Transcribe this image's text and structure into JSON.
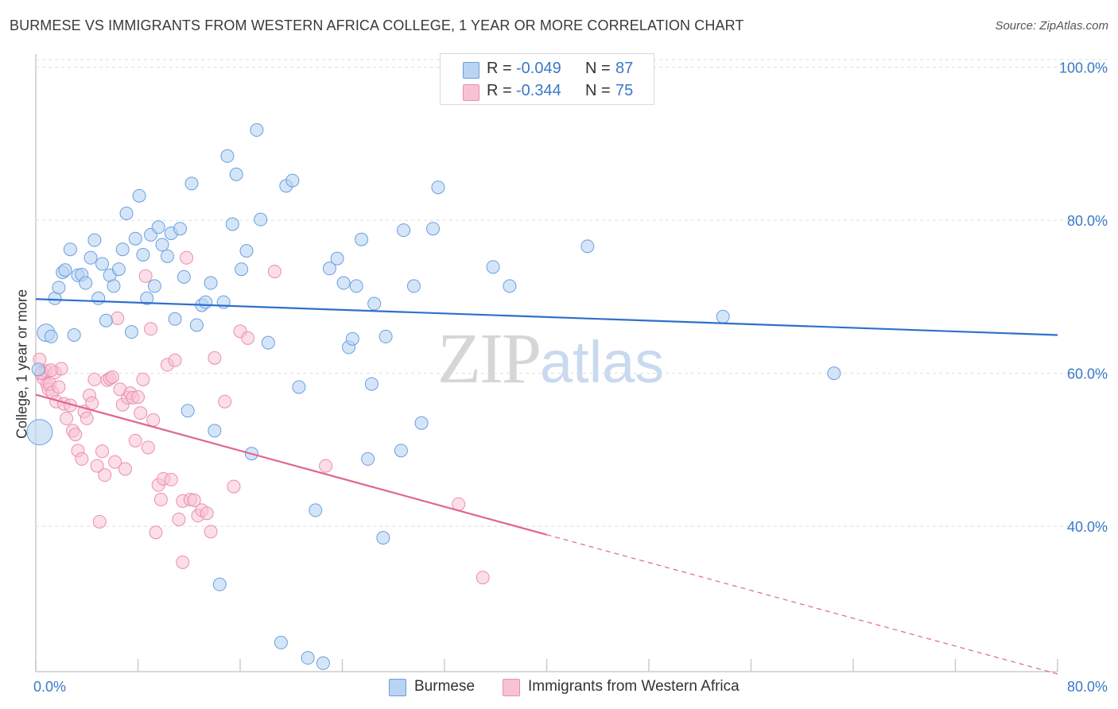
{
  "title": "BURMESE VS IMMIGRANTS FROM WESTERN AFRICA COLLEGE, 1 YEAR OR MORE CORRELATION CHART",
  "source": "Source: ZipAtlas.com",
  "watermark": {
    "zip": "ZIP",
    "atlas": "atlas"
  },
  "legend_top": {
    "rows": [
      {
        "r_label": "R =",
        "r_value": "-0.049",
        "n_label": "N =",
        "n_value": "87"
      },
      {
        "r_label": "R =",
        "r_value": "-0.344",
        "n_label": "N =",
        "n_value": "75"
      }
    ]
  },
  "legend_bottom": [
    "Burmese",
    "Immigrants from Western Africa"
  ],
  "colors": {
    "burmese_fill": "#b9d3f3",
    "burmese_stroke": "#6a9ee0",
    "burmese_line": "#2f6fcc",
    "wafrica_fill": "#f7c3d4",
    "wafrica_stroke": "#ec8eab",
    "wafrica_line": "#e0668f",
    "axis_text": "#3a78c9",
    "grid": "#dddddd"
  },
  "chart_data": {
    "type": "scatter",
    "title": "BURMESE VS IMMIGRANTS FROM WESTERN AFRICA COLLEGE, 1 YEAR OR MORE CORRELATION CHART",
    "xlabel": "",
    "ylabel": "College, 1 year or more",
    "x_tick_labels": [
      "0.0%",
      "80.0%"
    ],
    "y_tick_labels": [
      "100.0%",
      "80.0%",
      "60.0%",
      "40.0%"
    ],
    "xlim": [
      0,
      80
    ],
    "ylim": [
      21,
      101
    ],
    "y_ticks": [
      100,
      80,
      60,
      40
    ],
    "x_minor_ticks": [
      0,
      8,
      16,
      24,
      32,
      40,
      48,
      56,
      64,
      72,
      80
    ],
    "grid": true,
    "series": [
      {
        "name": "Burmese",
        "R": -0.049,
        "N": 87,
        "trend": {
          "x": [
            0,
            80
          ],
          "y": [
            69.7,
            65.0
          ]
        },
        "points": [
          [
            0.3,
            52.3
          ],
          [
            0.8,
            65.3
          ],
          [
            1.2,
            64.8
          ],
          [
            1.5,
            69.8
          ],
          [
            1.8,
            71.2
          ],
          [
            2.1,
            73.2
          ],
          [
            2.3,
            73.5
          ],
          [
            2.7,
            76.2
          ],
          [
            3.0,
            65.0
          ],
          [
            3.3,
            72.8
          ],
          [
            3.6,
            72.9
          ],
          [
            3.9,
            71.8
          ],
          [
            4.3,
            75.1
          ],
          [
            4.6,
            77.4
          ],
          [
            4.9,
            69.8
          ],
          [
            5.2,
            74.3
          ],
          [
            5.5,
            66.9
          ],
          [
            5.8,
            72.8
          ],
          [
            6.1,
            71.4
          ],
          [
            6.5,
            73.6
          ],
          [
            6.8,
            76.2
          ],
          [
            7.1,
            80.9
          ],
          [
            7.5,
            65.4
          ],
          [
            7.8,
            77.6
          ],
          [
            8.1,
            83.2
          ],
          [
            8.4,
            75.5
          ],
          [
            8.7,
            69.8
          ],
          [
            9.0,
            78.1
          ],
          [
            9.3,
            71.4
          ],
          [
            9.6,
            79.1
          ],
          [
            9.9,
            76.8
          ],
          [
            10.3,
            75.3
          ],
          [
            10.6,
            78.3
          ],
          [
            10.9,
            67.1
          ],
          [
            11.3,
            78.9
          ],
          [
            11.6,
            72.6
          ],
          [
            11.9,
            55.1
          ],
          [
            12.2,
            84.8
          ],
          [
            12.6,
            66.3
          ],
          [
            13.0,
            68.9
          ],
          [
            13.3,
            69.3
          ],
          [
            13.7,
            71.8
          ],
          [
            14.0,
            52.5
          ],
          [
            14.4,
            32.4
          ],
          [
            14.7,
            69.3
          ],
          [
            15.0,
            88.4
          ],
          [
            15.4,
            79.5
          ],
          [
            15.7,
            86.0
          ],
          [
            16.1,
            73.6
          ],
          [
            16.5,
            76.0
          ],
          [
            16.9,
            49.5
          ],
          [
            17.3,
            91.8
          ],
          [
            17.6,
            80.1
          ],
          [
            18.2,
            64.0
          ],
          [
            19.2,
            24.8
          ],
          [
            19.6,
            84.5
          ],
          [
            20.1,
            85.2
          ],
          [
            20.6,
            58.2
          ],
          [
            21.3,
            22.8
          ],
          [
            21.9,
            42.1
          ],
          [
            22.5,
            22.1
          ],
          [
            23.0,
            73.7
          ],
          [
            23.6,
            75.0
          ],
          [
            24.1,
            71.8
          ],
          [
            24.5,
            63.4
          ],
          [
            24.8,
            64.5
          ],
          [
            25.1,
            71.4
          ],
          [
            25.5,
            77.5
          ],
          [
            26.0,
            48.8
          ],
          [
            26.3,
            58.6
          ],
          [
            26.5,
            69.1
          ],
          [
            27.2,
            38.5
          ],
          [
            27.4,
            64.8
          ],
          [
            28.6,
            49.9
          ],
          [
            28.8,
            78.7
          ],
          [
            29.6,
            71.4
          ],
          [
            30.2,
            53.5
          ],
          [
            31.1,
            78.9
          ],
          [
            32.2,
            97.8
          ],
          [
            31.5,
            84.3
          ],
          [
            32.4,
            97.5
          ],
          [
            35.8,
            73.9
          ],
          [
            37.1,
            71.4
          ],
          [
            43.2,
            76.6
          ],
          [
            53.8,
            67.4
          ],
          [
            62.5,
            60.0
          ],
          [
            0.2,
            60.5
          ]
        ]
      },
      {
        "name": "Immigrants from Western Africa",
        "R": -0.344,
        "N": 75,
        "trend": {
          "x": [
            0,
            40
          ],
          "y": [
            57.2,
            38.9
          ],
          "dashed_to": {
            "x": 80,
            "y": 20.7
          }
        },
        "points": [
          [
            0.3,
            61.8
          ],
          [
            0.5,
            60.1
          ],
          [
            0.6,
            59.3
          ],
          [
            0.8,
            60.3
          ],
          [
            0.9,
            58.5
          ],
          [
            1.0,
            57.9
          ],
          [
            1.1,
            58.6
          ],
          [
            1.3,
            57.5
          ],
          [
            1.5,
            60.1
          ],
          [
            1.6,
            56.3
          ],
          [
            1.8,
            58.2
          ],
          [
            2.0,
            60.6
          ],
          [
            2.2,
            56.0
          ],
          [
            2.4,
            54.1
          ],
          [
            2.7,
            55.8
          ],
          [
            2.9,
            52.5
          ],
          [
            3.1,
            52.0
          ],
          [
            3.3,
            49.9
          ],
          [
            3.6,
            48.8
          ],
          [
            3.8,
            55.0
          ],
          [
            4.0,
            54.1
          ],
          [
            4.2,
            57.1
          ],
          [
            4.4,
            56.1
          ],
          [
            4.6,
            59.2
          ],
          [
            4.8,
            47.9
          ],
          [
            5.0,
            40.6
          ],
          [
            5.2,
            49.8
          ],
          [
            5.4,
            46.7
          ],
          [
            5.6,
            59.1
          ],
          [
            5.8,
            59.3
          ],
          [
            6.0,
            59.5
          ],
          [
            6.2,
            48.4
          ],
          [
            6.4,
            67.2
          ],
          [
            6.6,
            57.9
          ],
          [
            6.8,
            55.9
          ],
          [
            7.0,
            47.5
          ],
          [
            7.2,
            56.8
          ],
          [
            7.4,
            57.4
          ],
          [
            7.6,
            56.8
          ],
          [
            7.8,
            51.2
          ],
          [
            8.0,
            56.9
          ],
          [
            8.2,
            54.8
          ],
          [
            8.4,
            59.2
          ],
          [
            8.6,
            72.7
          ],
          [
            8.8,
            50.3
          ],
          [
            9.0,
            65.8
          ],
          [
            9.2,
            53.9
          ],
          [
            9.4,
            39.2
          ],
          [
            9.6,
            45.4
          ],
          [
            9.8,
            43.5
          ],
          [
            10.0,
            46.2
          ],
          [
            10.3,
            61.1
          ],
          [
            10.6,
            46.1
          ],
          [
            10.9,
            61.7
          ],
          [
            11.2,
            40.9
          ],
          [
            11.5,
            43.3
          ],
          [
            11.5,
            35.3
          ],
          [
            11.8,
            75.1
          ],
          [
            12.1,
            43.5
          ],
          [
            12.4,
            43.4
          ],
          [
            12.7,
            41.4
          ],
          [
            13.0,
            42.1
          ],
          [
            13.4,
            41.7
          ],
          [
            13.7,
            39.3
          ],
          [
            14.0,
            62.0
          ],
          [
            14.8,
            56.3
          ],
          [
            15.5,
            45.2
          ],
          [
            16.0,
            65.5
          ],
          [
            16.6,
            64.6
          ],
          [
            18.7,
            73.3
          ],
          [
            22.7,
            47.9
          ],
          [
            33.1,
            42.9
          ],
          [
            35.0,
            33.3
          ],
          [
            0.4,
            60.0
          ],
          [
            1.2,
            60.4
          ]
        ]
      }
    ]
  }
}
